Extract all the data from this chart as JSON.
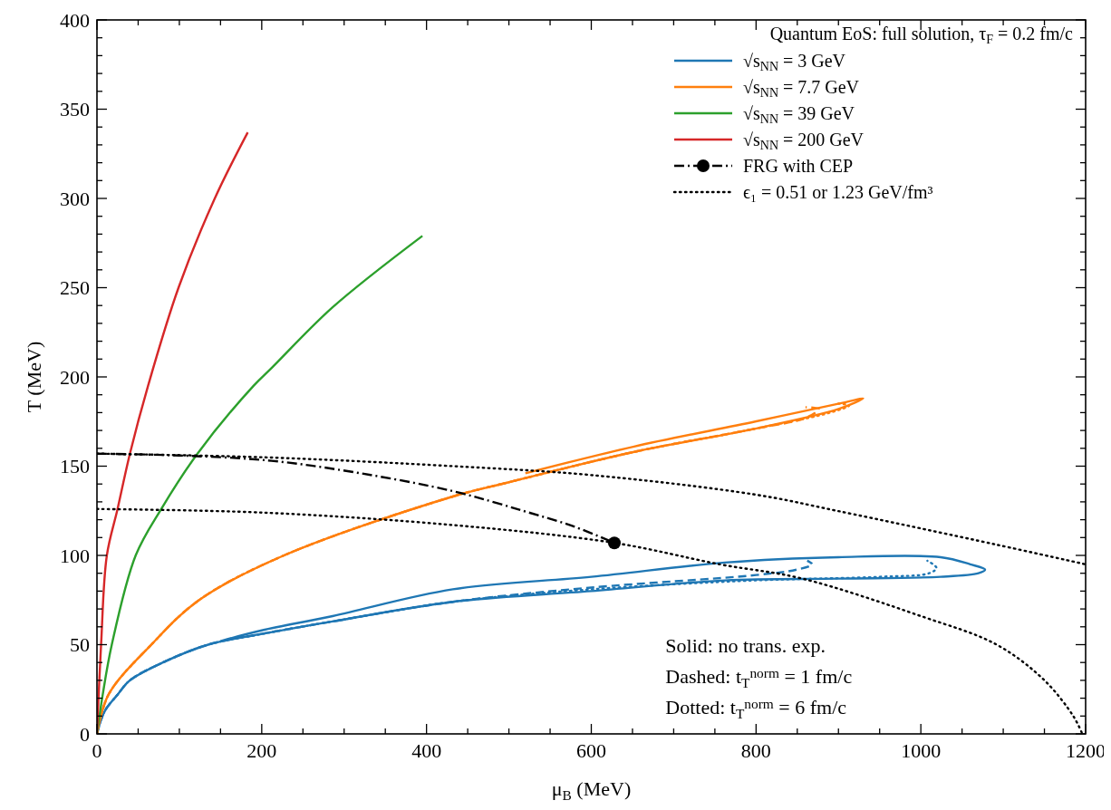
{
  "chart_data": {
    "type": "line",
    "xlabel": "μ$_{B}$ (MeV)",
    "ylabel": "T (MeV)",
    "xlim": [
      0,
      1200
    ],
    "ylim": [
      0,
      400
    ],
    "xticks": [
      0,
      {
        "value": 50,
        "label": null
      },
      {
        "value": 100,
        "label": null
      },
      {
        "value": 150,
        "label": null
      },
      200,
      {
        "value": 250,
        "label": null
      },
      {
        "value": 300,
        "label": null
      },
      {
        "value": 350,
        "label": null
      },
      400,
      {
        "value": 450,
        "label": null
      },
      {
        "value": 500,
        "label": null
      },
      {
        "value": 550,
        "label": null
      },
      600,
      {
        "value": 650,
        "label": null
      },
      {
        "value": 700,
        "label": null
      },
      {
        "value": 750,
        "label": null
      },
      800,
      {
        "value": 850,
        "label": null
      },
      {
        "value": 900,
        "label": null
      },
      {
        "value": 950,
        "label": null
      },
      1000,
      {
        "value": 1050,
        "label": null
      },
      {
        "value": 1100,
        "label": null
      },
      {
        "value": 1150,
        "label": null
      },
      1200
    ],
    "yticks": [
      0,
      {
        "value": 10,
        "label": null
      },
      {
        "value": 20,
        "label": null
      },
      {
        "value": 30,
        "label": null
      },
      {
        "value": 40,
        "label": null
      },
      50,
      {
        "value": 60,
        "label": null
      },
      {
        "value": 70,
        "label": null
      },
      {
        "value": 80,
        "label": null
      },
      {
        "value": 90,
        "label": null
      },
      100,
      {
        "value": 110,
        "label": null
      },
      {
        "value": 120,
        "label": null
      },
      {
        "value": 130,
        "label": null
      },
      {
        "value": 140,
        "label": null
      },
      150,
      {
        "value": 160,
        "label": null
      },
      {
        "value": 170,
        "label": null
      },
      {
        "value": 180,
        "label": null
      },
      {
        "value": 190,
        "label": null
      },
      200,
      {
        "value": 210,
        "label": null
      },
      {
        "value": 220,
        "label": null
      },
      {
        "value": 230,
        "label": null
      },
      {
        "value": 240,
        "label": null
      },
      250,
      {
        "value": 260,
        "label": null
      },
      {
        "value": 270,
        "label": null
      },
      {
        "value": 280,
        "label": null
      },
      {
        "value": 290,
        "label": null
      },
      300,
      {
        "value": 310,
        "label": null
      },
      {
        "value": 320,
        "label": null
      },
      {
        "value": 330,
        "label": null
      },
      {
        "value": 340,
        "label": null
      },
      350,
      {
        "value": 360,
        "label": null
      },
      {
        "value": 370,
        "label": null
      },
      {
        "value": 380,
        "label": null
      },
      {
        "value": 390,
        "label": null
      },
      400
    ],
    "legend": "top right",
    "legend_title": "Quantum EoS: full solution, τ$_{F}$ = 0.2 fm/c",
    "annotations": [
      "Solid: no trans. exp.",
      "Dashed: t$_{T}$$^{norm}$ = 1 fm/c",
      "Dotted: t$_{T}$$^{norm}$ = 6 fm/c"
    ],
    "series": [
      {
        "name": "√s$_{NN}$ = 3 GeV",
        "color": "#1f77b4",
        "line_style": "solid",
        "x": [
          0,
          5,
          11,
          25,
          40,
          80,
          135,
          200,
          286,
          432,
          600,
          762,
          900,
          1024,
          1070,
          1078,
          1060,
          1024,
          900,
          762,
          600,
          432,
          286,
          200,
          150
        ],
        "values": [
          0,
          8,
          14,
          22,
          30,
          40,
          50,
          56,
          63,
          74,
          80,
          86,
          87,
          88,
          90,
          92,
          95,
          99,
          99,
          96,
          88,
          81,
          66,
          58,
          52
        ]
      },
      {
        "color": "#1f77b4",
        "line_style": "dashed",
        "x": [
          0,
          5,
          11,
          25,
          40,
          80,
          135,
          200,
          286,
          432,
          600,
          800,
          849,
          868,
          862
        ],
        "values": [
          0,
          8,
          14,
          22,
          30,
          40,
          50,
          56,
          63,
          74,
          82,
          89,
          92,
          95,
          97
        ]
      },
      {
        "color": "#1f77b4",
        "line_style": "dotted",
        "x": [
          0,
          5,
          11,
          25,
          40,
          80,
          135,
          200,
          286,
          432,
          600,
          800,
          950,
          1010,
          1019,
          1008
        ],
        "values": [
          0,
          8,
          14,
          22,
          30,
          40,
          50,
          56,
          63,
          74,
          81,
          86,
          88,
          90,
          93,
          97
        ]
      },
      {
        "name": "√s$_{NN}$ = 7.7 GeV",
        "color": "#ff7f0e",
        "line_style": "solid",
        "x": [
          0,
          14,
          66,
          124,
          227,
          432,
          500,
          652,
          799,
          900,
          930,
          910,
          799,
          652,
          520
        ],
        "values": [
          0,
          22,
          50,
          75,
          100,
          133,
          141,
          158,
          171,
          182,
          188,
          186,
          175,
          161,
          146
        ]
      },
      {
        "color": "#ff7f0e",
        "line_style": "dashed",
        "x": [
          0,
          14,
          66,
          124,
          227,
          432,
          500,
          652,
          799,
          860,
          876,
          860
        ],
        "values": [
          0,
          22,
          50,
          75,
          100,
          133,
          141,
          158,
          171,
          177,
          182,
          183
        ]
      },
      {
        "color": "#ff7f0e",
        "line_style": "dotted",
        "x": [
          0,
          14,
          66,
          124,
          227,
          432,
          500,
          652,
          799,
          890,
          913,
          900
        ],
        "values": [
          0,
          22,
          50,
          75,
          100,
          133,
          141,
          158,
          171,
          180,
          184,
          185
        ]
      },
      {
        "name": "√s$_{NN}$ = 39 GeV",
        "color": "#2ca02c",
        "line_style": "solid",
        "x": [
          0,
          7,
          18,
          47,
          78,
          122,
          190,
          212,
          286,
          395
        ],
        "values": [
          0,
          22,
          50,
          100,
          126,
          157,
          195,
          205,
          239,
          279
        ]
      },
      {
        "name": "√s$_{NN}$ = 200 GeV",
        "color": "#d62728",
        "line_style": "solid",
        "x": [
          0,
          5,
          12,
          25,
          40,
          62,
          99,
          143,
          183
        ],
        "values": [
          0,
          50,
          100,
          126,
          157,
          195,
          250,
          300,
          337
        ]
      },
      {
        "name": "FRG with CEP",
        "color": "#000000",
        "line_style": "dashdot",
        "x": [
          0,
          100,
          212,
          320,
          432,
          517,
          580,
          628
        ],
        "values": [
          157,
          156,
          153,
          146,
          136,
          125,
          116,
          107
        ]
      },
      {
        "type": "scatter",
        "color": "#000000",
        "marker": "circle",
        "x": [
          628
        ],
        "values": [
          107
        ]
      },
      {
        "name": "ϵ₁ = 0.51 or 1.23 GeV/fm³",
        "color": "#000000",
        "line_style": "dotted",
        "x": [
          0,
          200,
          432,
          600,
          800,
          898,
          1092,
          1200
        ],
        "values": [
          157,
          155,
          150,
          145,
          134,
          125,
          106,
          95
        ]
      },
      {
        "color": "#000000",
        "line_style": "dotted",
        "x": [
          0,
          200,
          432,
          628,
          756,
          856,
          1000,
          1092,
          1150,
          1185,
          1196
        ],
        "values": [
          126,
          124,
          117,
          107,
          95,
          87,
          66,
          50,
          30,
          10,
          0
        ]
      }
    ]
  }
}
